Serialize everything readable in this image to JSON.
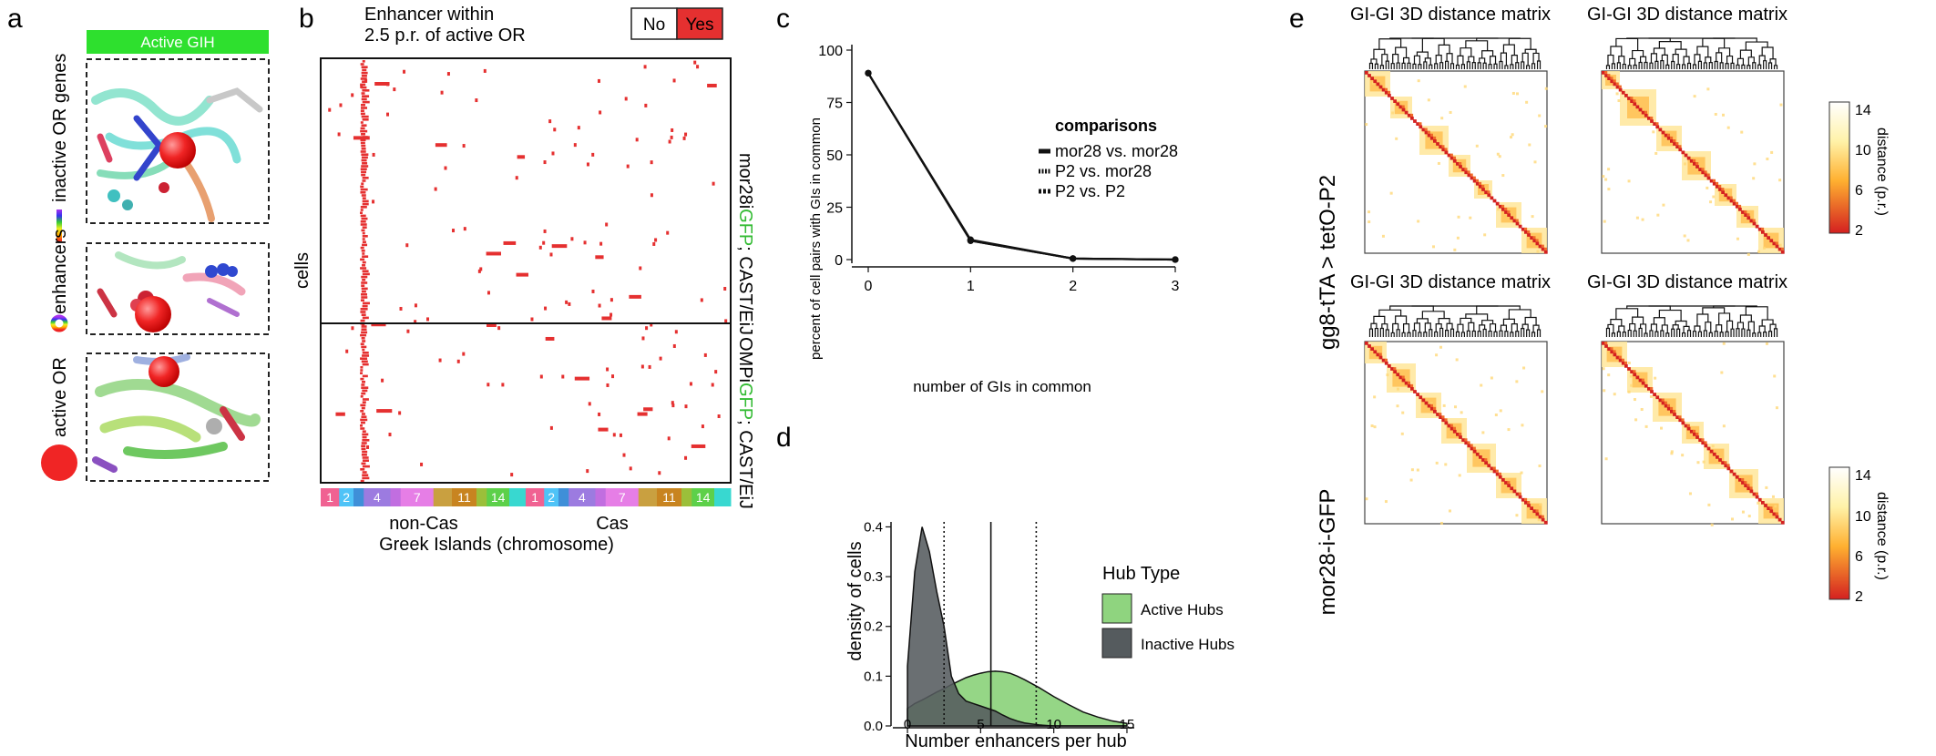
{
  "panel_letters": {
    "a": "a",
    "b": "b",
    "c": "c",
    "d": "d",
    "e": "e"
  },
  "colors": {
    "accent_green": "#2ee02e",
    "heat_red": "#e53030",
    "gfp_green": "#33bb33",
    "active_fill": "#8fd47f",
    "inactive_fill": "#555b5e"
  },
  "panel_a": {
    "banner": "Active GIH",
    "legend": [
      {
        "label": "inactive OR genes",
        "icon": "rainbow-bar-icon"
      },
      {
        "label": "enhancers",
        "icon": "rainbow-ring-icon"
      },
      {
        "label": "active OR",
        "icon": "red-circle-icon"
      }
    ]
  },
  "panel_b": {
    "title_line1": "Enhancer within",
    "title_line2": "2.5 p.r. of active OR",
    "legend_no": "No",
    "legend_yes": "Yes",
    "ylabel": "cells",
    "row_label_top": {
      "pre": "mor28i",
      "gfp": "GFP",
      "post": "; CAST/EiJ"
    },
    "row_label_bottom": {
      "pre": "OMPi",
      "gfp": "GFP",
      "post": "; CAST/EiJ"
    },
    "chromosome_groups": [
      "non-Cas",
      "Cas"
    ],
    "xlabel": "Greek Islands (chromosome)",
    "chromosome_segments": [
      {
        "label": "1",
        "color": "#f06292"
      },
      {
        "label": "2",
        "color": "#4fc3f7"
      },
      {
        "label": "",
        "color": "#3f8fd8"
      },
      {
        "label": "4",
        "color": "#9c7be0"
      },
      {
        "label": "",
        "color": "#c16ee0"
      },
      {
        "label": "7",
        "color": "#e67ee6"
      },
      {
        "label": "",
        "color": "#c9a040"
      },
      {
        "label": "11",
        "color": "#c88420"
      },
      {
        "label": "",
        "color": "#9bbf3a"
      },
      {
        "label": "14",
        "color": "#5dd04a"
      },
      {
        "label": "",
        "color": "#38d8d0"
      }
    ]
  },
  "panel_c": {
    "legend_title": "comparisons",
    "chart_data": {
      "type": "line",
      "x": [
        0,
        1,
        2,
        3
      ],
      "series": [
        {
          "name": "mor28 vs. mor28",
          "values": [
            89,
            9.5,
            0.5,
            0
          ]
        },
        {
          "name": "P2 vs. mor28",
          "values": [
            89,
            9,
            0.5,
            0
          ]
        },
        {
          "name": "P2 vs. P2",
          "values": [
            89,
            9,
            0.5,
            0
          ]
        }
      ],
      "xlabel": "number of GIs in common",
      "ylabel": "percent of cell pairs with GIs in common",
      "xticks": [
        "0",
        "1",
        "2",
        "3"
      ],
      "yticks": [
        "0",
        "25",
        "50",
        "75",
        "100"
      ],
      "xlim": [
        0,
        3
      ],
      "ylim": [
        0,
        100
      ]
    }
  },
  "panel_d": {
    "legend_title": "Hub Type",
    "chart_data": {
      "type": "area",
      "xlabel": "Number enhancers per hub",
      "ylabel": "density of cells",
      "xticks": [
        "0",
        "5",
        "10",
        "15"
      ],
      "yticks": [
        "0.0",
        "0.1",
        "0.2",
        "0.3",
        "0.4"
      ],
      "xlim": [
        -1,
        15.5
      ],
      "ylim": [
        0,
        0.41
      ],
      "x": [
        0,
        0.5,
        1,
        1.5,
        2,
        2.5,
        3,
        3.5,
        4,
        4.5,
        5,
        5.5,
        6,
        6.5,
        7,
        7.5,
        8,
        8.5,
        9,
        9.5,
        10,
        11,
        12,
        13,
        14,
        15
      ],
      "series": [
        {
          "name": "Active Hubs",
          "values": [
            0.035,
            0.045,
            0.052,
            0.06,
            0.068,
            0.075,
            0.083,
            0.09,
            0.097,
            0.102,
            0.106,
            0.109,
            0.11,
            0.109,
            0.106,
            0.1,
            0.093,
            0.085,
            0.077,
            0.068,
            0.059,
            0.043,
            0.028,
            0.018,
            0.01,
            0.005
          ]
        },
        {
          "name": "Inactive Hubs",
          "values": [
            0.12,
            0.31,
            0.4,
            0.35,
            0.27,
            0.2,
            0.1,
            0.065,
            0.05,
            0.045,
            0.04,
            0.035,
            0.03,
            0.022,
            0.015,
            0.01,
            0.006,
            0.004,
            0.002,
            0.001,
            0,
            0,
            0,
            0,
            0,
            0
          ]
        }
      ],
      "vlines": [
        {
          "x": 2.5,
          "style": "dotted"
        },
        {
          "x": 5.7,
          "style": "solid"
        },
        {
          "x": 8.8,
          "style": "dotted"
        }
      ]
    }
  },
  "panel_e": {
    "matrix_title": "GI-GI 3D distance matrix",
    "row_labels": [
      "gg8-tTA > tetO-P2",
      "mor28-i-GFP"
    ],
    "colorbar_label": "distance (p.r.)",
    "colorbar_ticks": [
      "14",
      "10",
      "6",
      "2"
    ]
  }
}
